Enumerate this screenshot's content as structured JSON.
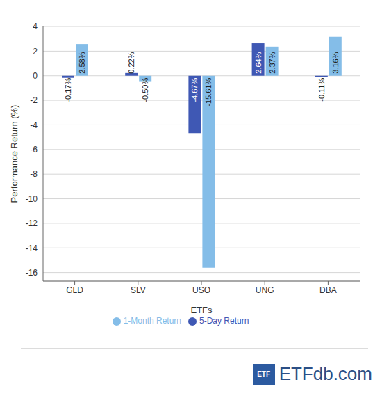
{
  "chart_data": {
    "type": "bar",
    "categories": [
      "GLD",
      "SLV",
      "USO",
      "UNG",
      "DBA"
    ],
    "series": [
      {
        "name": "5-Day Return",
        "color": "#3f58b4",
        "values": [
          -0.17,
          0.22,
          -4.67,
          2.64,
          -0.11
        ],
        "value_labels": [
          "-0.17%",
          "0.22%",
          "-4.67%",
          "2.64%",
          "-0.11%"
        ]
      },
      {
        "name": "1-Month Return",
        "color": "#84bde8",
        "values": [
          2.58,
          -0.5,
          -15.61,
          2.37,
          3.16
        ],
        "value_labels": [
          "2.58%",
          "-0.50%",
          "-15.61%",
          "2.37%",
          "3.16%"
        ]
      }
    ],
    "x_label": "ETFs",
    "y_label": "Performance Return (%)",
    "ylim": [
      -16.7,
      4
    ],
    "yticks": [
      -16,
      -14,
      -12,
      -10,
      -8,
      -6,
      -4,
      -2,
      0,
      2,
      4
    ],
    "grid": true,
    "legend": "bottom",
    "data_labels": true
  },
  "logo": {
    "badge": "ETF",
    "text": "ETFdb.com"
  }
}
